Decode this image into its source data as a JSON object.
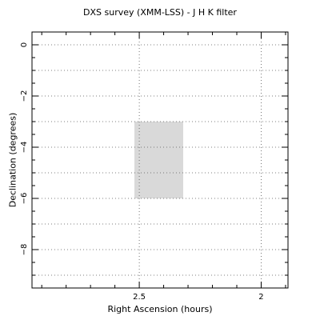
{
  "chart_data": {
    "type": "scatter",
    "title": "DXS survey (XMM-LSS) - J H K filter",
    "xlabel": "Right Ascension (hours)",
    "ylabel": "Declination (degrees)",
    "xlim": [
      2.94,
      1.89
    ],
    "ylim": [
      -9.5,
      0.5
    ],
    "x_inverted": true,
    "x_major_ticks": [
      2.5,
      2
    ],
    "x_tick_labels": [
      "2.5",
      "2"
    ],
    "y_major_ticks": [
      0,
      -2,
      -4,
      -6,
      -8
    ],
    "y_tick_labels": [
      "0",
      "−2",
      "−4",
      "−6",
      "−8"
    ],
    "grid": true,
    "x_gridlines": [
      2.5,
      2
    ],
    "y_gridlines": [
      0,
      -1,
      -2,
      -3,
      -4,
      -5,
      -6,
      -7,
      -8,
      -9
    ],
    "regions": [
      {
        "name": "",
        "ra_range": [
          2.52,
          2.32
        ],
        "dec_range": [
          -3,
          -6
        ],
        "color": "#d9d9d9"
      }
    ]
  }
}
